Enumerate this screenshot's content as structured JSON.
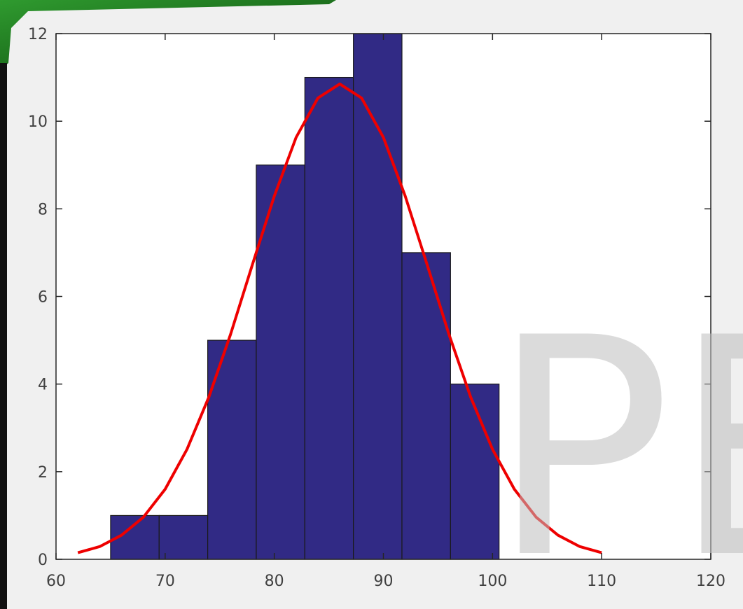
{
  "chart_data": {
    "type": "histogram",
    "bins": [
      65,
      69.45,
      73.9,
      78.35,
      82.8,
      87.25,
      91.7,
      96.15,
      100.6
    ],
    "values": [
      1,
      1,
      5,
      9,
      11,
      12,
      7,
      4
    ],
    "color": "#312a85",
    "xlim": [
      60,
      120
    ],
    "ylim": [
      0,
      12
    ],
    "xticks": [
      60,
      70,
      80,
      90,
      100,
      110,
      120
    ],
    "yticks": [
      0,
      2,
      4,
      6,
      8,
      10,
      12
    ],
    "overlay": {
      "type": "line",
      "color": "#ee0000",
      "x": [
        62,
        64,
        66,
        68,
        70,
        72,
        74,
        76,
        78,
        80,
        82,
        84,
        86,
        88,
        90,
        92,
        94,
        96,
        98,
        100,
        102,
        104,
        106,
        108,
        110
      ],
      "values": [
        0.15,
        0.29,
        0.55,
        0.96,
        1.6,
        2.51,
        3.7,
        5.14,
        6.73,
        8.29,
        9.63,
        10.53,
        10.85,
        10.53,
        9.63,
        8.29,
        6.73,
        5.14,
        3.7,
        2.51,
        1.6,
        0.96,
        0.55,
        0.29,
        0.15
      ]
    },
    "watermark": "PE"
  }
}
